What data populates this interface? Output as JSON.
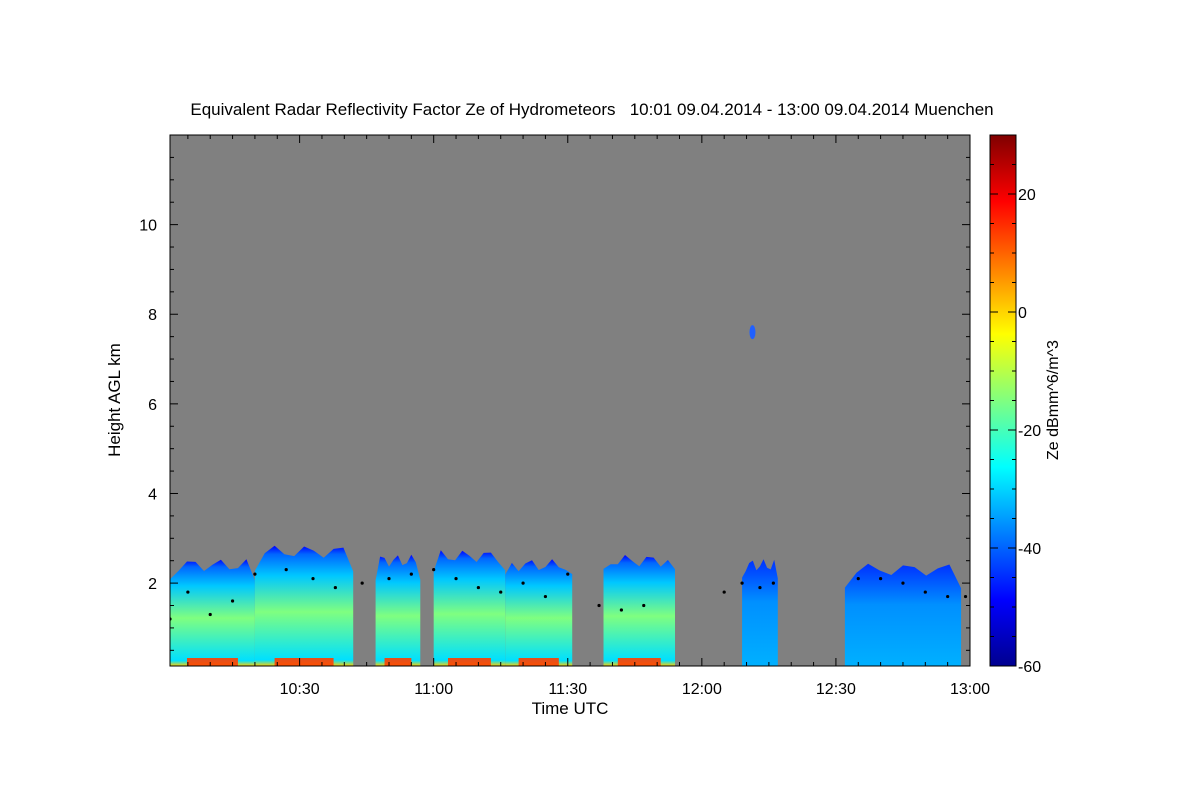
{
  "chart_data": {
    "type": "heatmap",
    "title": "Equivalent Radar Reflectivity Factor Ze of Hydrometeors   10:01 09.04.2014 - 13:00 09.04.2014 Muenchen",
    "xlabel": "Time UTC",
    "ylabel": "Height AGL km",
    "x_start": "10:01",
    "x_end": "13:00",
    "xlim": [
      "10:01",
      "13:00"
    ],
    "ylim": [
      0.15,
      12
    ],
    "x_ticks": [
      "10:30",
      "11:00",
      "11:30",
      "12:00",
      "12:30",
      "13:00"
    ],
    "y_ticks": [
      2,
      4,
      6,
      8,
      10
    ],
    "background_color": "#808080",
    "colorbar": {
      "label": "Ze dBmm^6/m^3",
      "range": [
        -60,
        30
      ],
      "ticks": [
        -60,
        -40,
        -20,
        0,
        20
      ],
      "colormap": "jet"
    },
    "cells": [
      {
        "start": "10:01",
        "end": "10:20",
        "top_km": 2.4,
        "peak_dbz": -12
      },
      {
        "start": "10:20",
        "end": "10:42",
        "top_km": 2.7,
        "peak_dbz": -10
      },
      {
        "start": "10:47",
        "end": "10:57",
        "top_km": 2.5,
        "peak_dbz": -8
      },
      {
        "start": "11:00",
        "end": "11:16",
        "top_km": 2.6,
        "peak_dbz": -10
      },
      {
        "start": "11:16",
        "end": "11:31",
        "top_km": 2.4,
        "peak_dbz": -12
      },
      {
        "start": "11:38",
        "end": "11:54",
        "top_km": 2.5,
        "peak_dbz": -14
      },
      {
        "start": "12:09",
        "end": "12:17",
        "top_km": 2.4,
        "peak_dbz": -26
      },
      {
        "start": "12:32",
        "end": "12:58",
        "top_km": 2.3,
        "peak_dbz": -30
      }
    ],
    "isolated_echo": {
      "time": "12:12",
      "height_km": 7.6,
      "dbz": -45
    },
    "cloud_base_points": [
      {
        "t": "10:01",
        "h": 1.2
      },
      {
        "t": "10:05",
        "h": 1.8
      },
      {
        "t": "10:10",
        "h": 1.3
      },
      {
        "t": "10:15",
        "h": 1.6
      },
      {
        "t": "10:20",
        "h": 2.2
      },
      {
        "t": "10:27",
        "h": 2.3
      },
      {
        "t": "10:33",
        "h": 2.1
      },
      {
        "t": "10:38",
        "h": 1.9
      },
      {
        "t": "10:44",
        "h": 2.0
      },
      {
        "t": "10:50",
        "h": 2.1
      },
      {
        "t": "10:55",
        "h": 2.2
      },
      {
        "t": "11:00",
        "h": 2.3
      },
      {
        "t": "11:05",
        "h": 2.1
      },
      {
        "t": "11:10",
        "h": 1.9
      },
      {
        "t": "11:15",
        "h": 1.8
      },
      {
        "t": "11:20",
        "h": 2.0
      },
      {
        "t": "11:25",
        "h": 1.7
      },
      {
        "t": "11:30",
        "h": 2.2
      },
      {
        "t": "11:37",
        "h": 1.5
      },
      {
        "t": "11:42",
        "h": 1.4
      },
      {
        "t": "11:47",
        "h": 1.5
      },
      {
        "t": "12:05",
        "h": 1.8
      },
      {
        "t": "12:09",
        "h": 2.0
      },
      {
        "t": "12:13",
        "h": 1.9
      },
      {
        "t": "12:16",
        "h": 2.0
      },
      {
        "t": "12:35",
        "h": 2.1
      },
      {
        "t": "12:40",
        "h": 2.1
      },
      {
        "t": "12:45",
        "h": 2.0
      },
      {
        "t": "12:50",
        "h": 1.8
      },
      {
        "t": "12:55",
        "h": 1.7
      },
      {
        "t": "12:59",
        "h": 1.7
      }
    ]
  }
}
